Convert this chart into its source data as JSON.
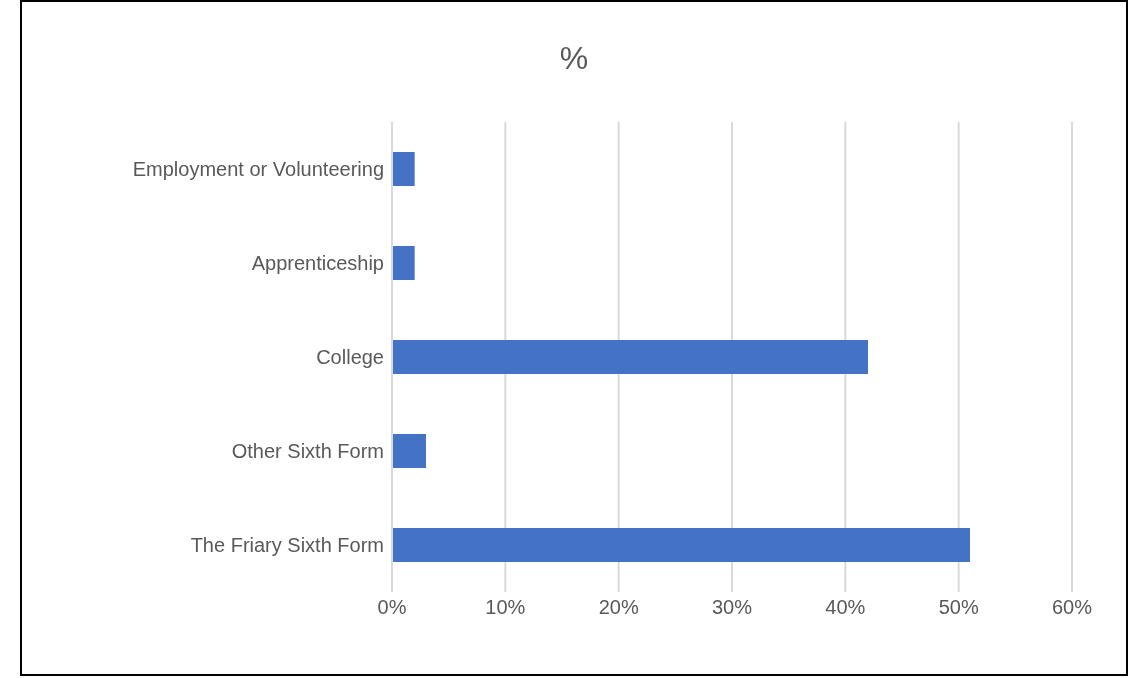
{
  "chart_data": {
    "type": "bar",
    "orientation": "horizontal",
    "title": "%",
    "categories": [
      "Employment or Volunteering",
      "Apprenticeship",
      "College",
      "Other Sixth Form",
      "The Friary Sixth Form"
    ],
    "values": [
      2,
      2,
      42,
      3,
      51
    ],
    "color": "#4472c4",
    "xlim": [
      0,
      60
    ],
    "xticks": [
      {
        "value": 0,
        "label": "0%"
      },
      {
        "value": 10,
        "label": "10%"
      },
      {
        "value": 20,
        "label": "20%"
      },
      {
        "value": 30,
        "label": "30%"
      },
      {
        "value": 40,
        "label": "40%"
      },
      {
        "value": 50,
        "label": "50%"
      },
      {
        "value": 60,
        "label": "60%"
      }
    ],
    "grid": "x",
    "legend": false
  }
}
